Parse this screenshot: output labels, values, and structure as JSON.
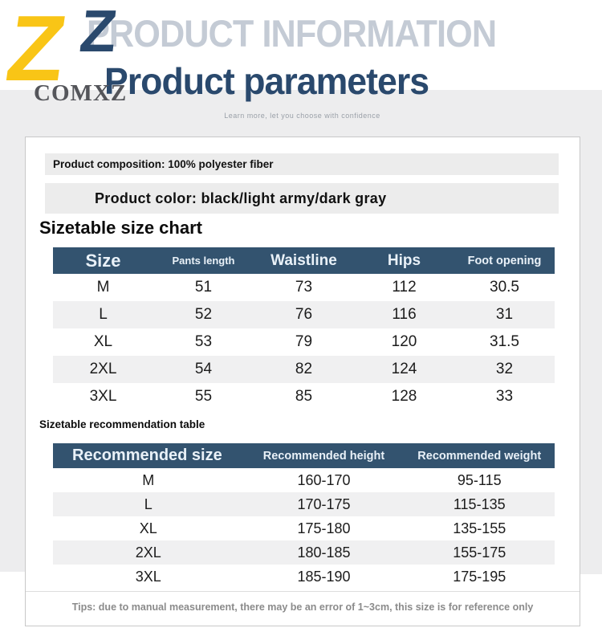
{
  "brand": {
    "logo_letter": "Z",
    "name": "COMXZ"
  },
  "header": {
    "watermark": "PRODUCT INFORMATION",
    "title": "Product parameters",
    "tagline": "Learn more, let you choose with confidence"
  },
  "info_bars": {
    "composition": "Product composition: 100% polyester fiber",
    "color": "Product color: black/light army/dark gray"
  },
  "size_section_heading": "Sizetable size chart",
  "size_table": {
    "headers": [
      {
        "label": "Size",
        "style": "xl"
      },
      {
        "label": "Pants length",
        "style": "sm"
      },
      {
        "label": "Waistline",
        "style": "lg"
      },
      {
        "label": "Hips",
        "style": "lg"
      },
      {
        "label": "Foot opening",
        "style": "md"
      }
    ],
    "rows": [
      [
        "M",
        "51",
        "73",
        "112",
        "30.5"
      ],
      [
        "L",
        "52",
        "76",
        "116",
        "31"
      ],
      [
        "XL",
        "53",
        "79",
        "120",
        "31.5"
      ],
      [
        "2XL",
        "54",
        "82",
        "124",
        "32"
      ],
      [
        "3XL",
        "55",
        "85",
        "128",
        "33"
      ]
    ]
  },
  "recommend_section_heading": "Sizetable recommendation table",
  "recommend_table": {
    "headers": [
      {
        "label": "Recommended size",
        "style": "xl-left"
      },
      {
        "label": "Recommended height",
        "style": "md"
      },
      {
        "label": "Recommended weight",
        "style": "md"
      }
    ],
    "rows": [
      [
        "M",
        "160-170",
        "95-115"
      ],
      [
        "L",
        "170-175",
        "115-135"
      ],
      [
        "XL",
        "175-180",
        "135-155"
      ],
      [
        "2XL",
        "180-185",
        "155-175"
      ],
      [
        "3XL",
        "185-190",
        "175-195"
      ]
    ]
  },
  "footer": {
    "tips": "Tips: due to manual measurement, there may be an error of 1~3cm, this size is for reference only"
  },
  "colors": {
    "header_navy": "#2a496d",
    "watermark_gray": "#c4cbd5",
    "brand_yellow": "#f9c516",
    "table_header_bg": "#33536f",
    "row_alt_bg": "#f0f0f1",
    "bar_bg": "#ececec",
    "band_gray": "#ededee",
    "tips_gray": "#8b8b8b"
  }
}
